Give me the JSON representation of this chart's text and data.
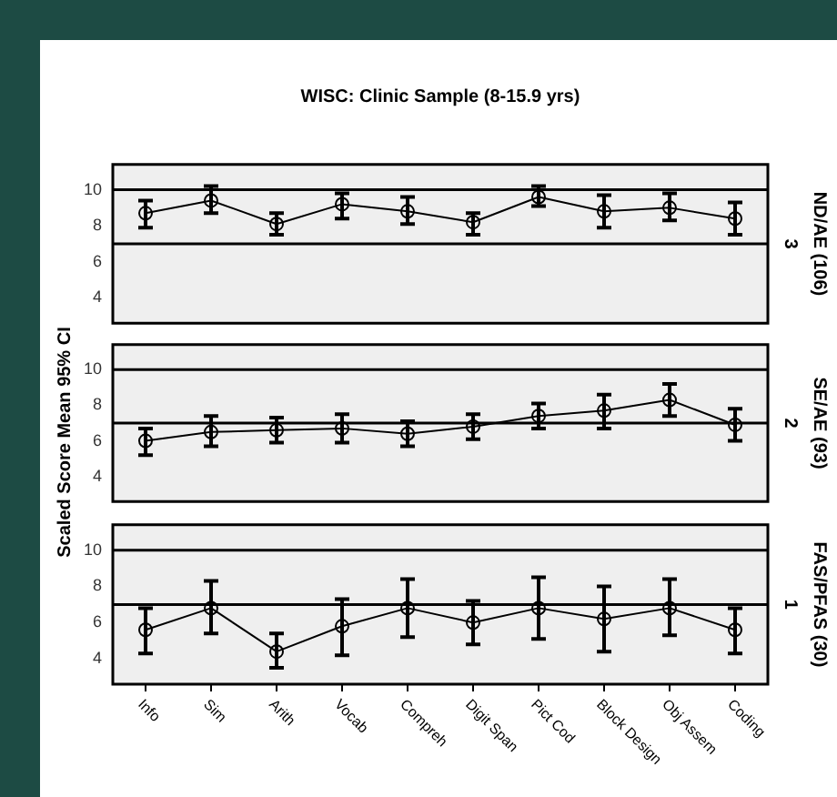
{
  "chart_data": [
    {
      "type": "line",
      "title": "WISC: Clinic Sample (8-15.9 yrs)",
      "y2label": "ND/AE (106)",
      "annotations": [
        "3"
      ],
      "categories": [
        null,
        null,
        null,
        null,
        null,
        null,
        null,
        null,
        null,
        null
      ],
      "tick_labels": "y",
      "ylim": [
        2.6,
        11.4
      ],
      "yticks": [
        4,
        6,
        8,
        10
      ],
      "marker": "circle",
      "series": [
        {
          "color": "#000000",
          "values": [
            8.7,
            9.4,
            8.1,
            9.2,
            8.8,
            8.2,
            9.6,
            8.8,
            9.0,
            8.4
          ],
          "errors": [
            [
              7.9,
              9.4
            ],
            [
              8.7,
              10.2
            ],
            [
              7.5,
              8.7
            ],
            [
              8.4,
              9.8
            ],
            [
              8.1,
              9.6
            ],
            [
              7.5,
              8.7
            ],
            [
              9.1,
              10.2
            ],
            [
              7.9,
              9.7
            ],
            [
              8.3,
              9.8
            ],
            [
              7.5,
              9.3
            ]
          ]
        }
      ],
      "ref_lines": [
        {
          "axis": "y",
          "value": 10,
          "color": "#000000"
        },
        {
          "axis": "y",
          "value": 7,
          "color": "#000000"
        }
      ]
    },
    {
      "type": "line",
      "ylabel": "Scaled Score Mean 95% CI",
      "y2label": "SE/AE (93)",
      "annotations": [
        "2"
      ],
      "categories": [
        null,
        null,
        null,
        null,
        null,
        null,
        null,
        null,
        null,
        null
      ],
      "tick_labels": "y",
      "ylim": [
        2.6,
        11.4
      ],
      "yticks": [
        4,
        6,
        8,
        10
      ],
      "marker": "circle",
      "series": [
        {
          "color": "#000000",
          "values": [
            6.0,
            6.5,
            6.6,
            6.7,
            6.4,
            6.8,
            7.4,
            7.7,
            8.3,
            6.9
          ],
          "errors": [
            [
              5.2,
              6.7
            ],
            [
              5.7,
              7.4
            ],
            [
              5.9,
              7.3
            ],
            [
              5.9,
              7.5
            ],
            [
              5.7,
              7.1
            ],
            [
              6.1,
              7.5
            ],
            [
              6.7,
              8.1
            ],
            [
              6.7,
              8.6
            ],
            [
              7.4,
              9.2
            ],
            [
              6.0,
              7.8
            ]
          ]
        }
      ],
      "ref_lines": [
        {
          "axis": "y",
          "value": 10,
          "color": "#000000"
        },
        {
          "axis": "y",
          "value": 7,
          "color": "#000000"
        }
      ]
    },
    {
      "type": "line",
      "y2label": "FAS/PFAS (30)",
      "annotations": [
        "1"
      ],
      "categories": [
        "Info",
        "Sim",
        "Arith",
        "Vocab",
        "Compreh",
        "Digit Span",
        "Pict Cod",
        "Block Design",
        "Obj Assem",
        "Coding"
      ],
      "ylim": [
        2.6,
        11.4
      ],
      "yticks": [
        4,
        6,
        8,
        10
      ],
      "marker": "circle",
      "series": [
        {
          "color": "#000000",
          "values": [
            5.6,
            6.8,
            4.4,
            5.8,
            6.8,
            6.0,
            6.8,
            6.2,
            6.8,
            5.6
          ],
          "errors": [
            [
              4.3,
              6.8
            ],
            [
              5.4,
              8.3
            ],
            [
              3.5,
              5.4
            ],
            [
              4.2,
              7.3
            ],
            [
              5.2,
              8.4
            ],
            [
              4.8,
              7.2
            ],
            [
              5.1,
              8.5
            ],
            [
              4.4,
              8.0
            ],
            [
              5.3,
              8.4
            ],
            [
              4.3,
              6.8
            ]
          ]
        }
      ],
      "ref_lines": [
        {
          "axis": "y",
          "value": 10,
          "color": "#000000"
        },
        {
          "axis": "y",
          "value": 7,
          "color": "#000000"
        }
      ]
    }
  ]
}
